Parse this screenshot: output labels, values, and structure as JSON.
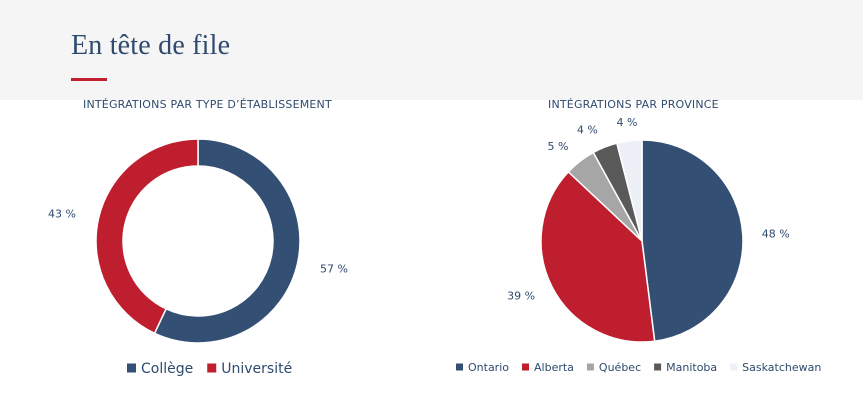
{
  "page": {
    "title": "En tête de file"
  },
  "colors": {
    "header_bg": "#f5f5f5",
    "accent_red": "#c0202f",
    "navy": "#2e4a6e"
  },
  "chart_data": [
    {
      "type": "pie",
      "variant": "donut",
      "title": "INTÉGRATIONS PAR TYPE D’ÉTABLISSEMENT",
      "categories": [
        "Collège",
        "Université"
      ],
      "values": [
        57,
        43
      ],
      "labels": [
        "57 %",
        "43 %"
      ],
      "colors": [
        "#334f73",
        "#bf1e2e"
      ],
      "legend": "bottom",
      "start": "top",
      "direction": "clockwise"
    },
    {
      "type": "pie",
      "title": "INTÉGRATIONS PAR PROVINCE",
      "categories": [
        "Ontario",
        "Alberta",
        "Québec",
        "Manitoba",
        "Saskatchewan"
      ],
      "values": [
        48,
        39,
        5,
        4,
        4
      ],
      "labels": [
        "48 %",
        "39 %",
        "5 %",
        "4 %",
        "4 %"
      ],
      "colors": [
        "#334f73",
        "#bf1e2e",
        "#a6a6a6",
        "#595959",
        "#edf0f6"
      ],
      "legend": "bottom",
      "start": "top",
      "direction": "clockwise"
    }
  ]
}
